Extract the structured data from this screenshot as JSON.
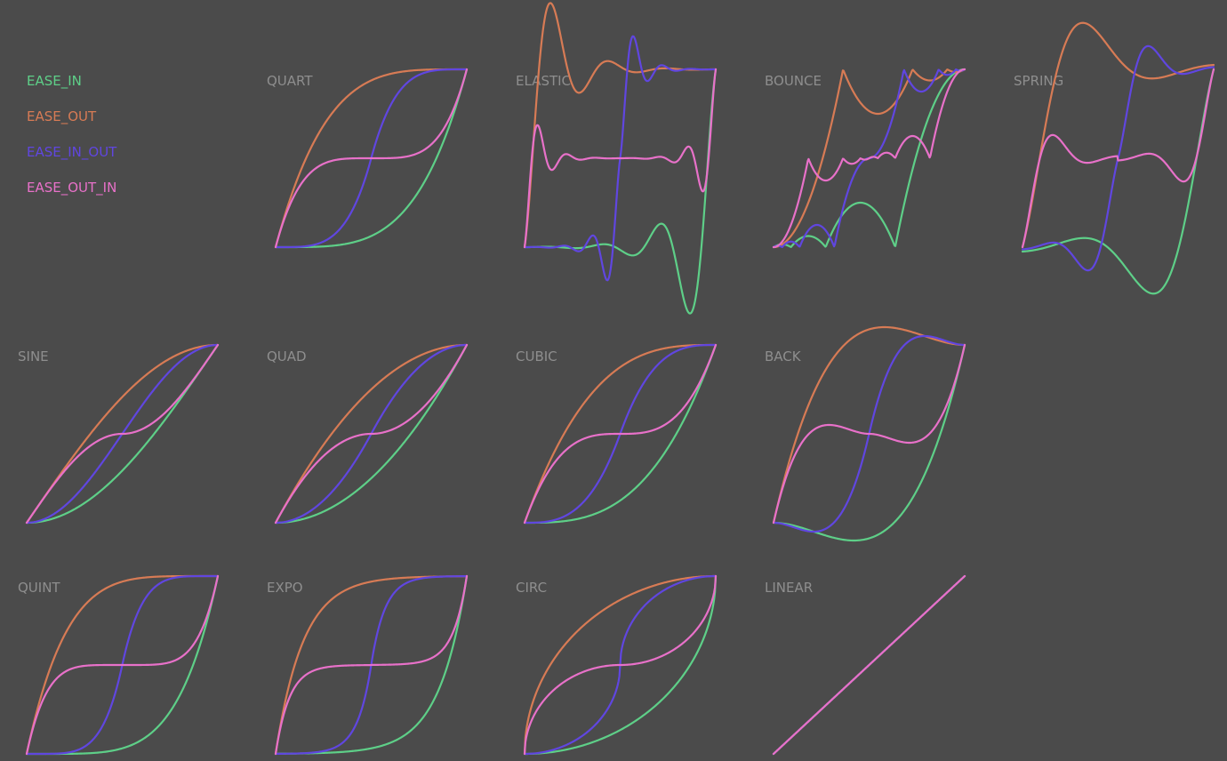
{
  "legend": {
    "ease_in": "EASE_IN",
    "ease_out": "EASE_OUT",
    "ease_in_out": "EASE_IN_OUT",
    "ease_out_in": "EASE_OUT_IN"
  },
  "colors": {
    "background": "#4b4b4b",
    "panel_title": "#8e8e8e",
    "ease_in": "#5ecf88",
    "ease_out": "#d77b55",
    "ease_in_out": "#6046e0",
    "ease_out_in": "#e871c9"
  },
  "chart_data": {
    "type": "line",
    "x_domain": [
      0,
      1
    ],
    "y_domain": [
      0,
      1
    ],
    "series": [
      "ease_in",
      "ease_out",
      "ease_in_out",
      "ease_out_in"
    ],
    "panels": [
      {
        "key": "quart",
        "title": "QUART"
      },
      {
        "key": "elastic",
        "title": "ELASTIC"
      },
      {
        "key": "bounce",
        "title": "BOUNCE"
      },
      {
        "key": "spring",
        "title": "SPRING"
      },
      {
        "key": "sine",
        "title": "SINE"
      },
      {
        "key": "quad",
        "title": "QUAD"
      },
      {
        "key": "cubic",
        "title": "CUBIC"
      },
      {
        "key": "back",
        "title": "BACK"
      },
      {
        "key": "quint",
        "title": "QUINT"
      },
      {
        "key": "expo",
        "title": "EXPO"
      },
      {
        "key": "circ",
        "title": "CIRC"
      },
      {
        "key": "linear",
        "title": "LINEAR"
      }
    ]
  }
}
